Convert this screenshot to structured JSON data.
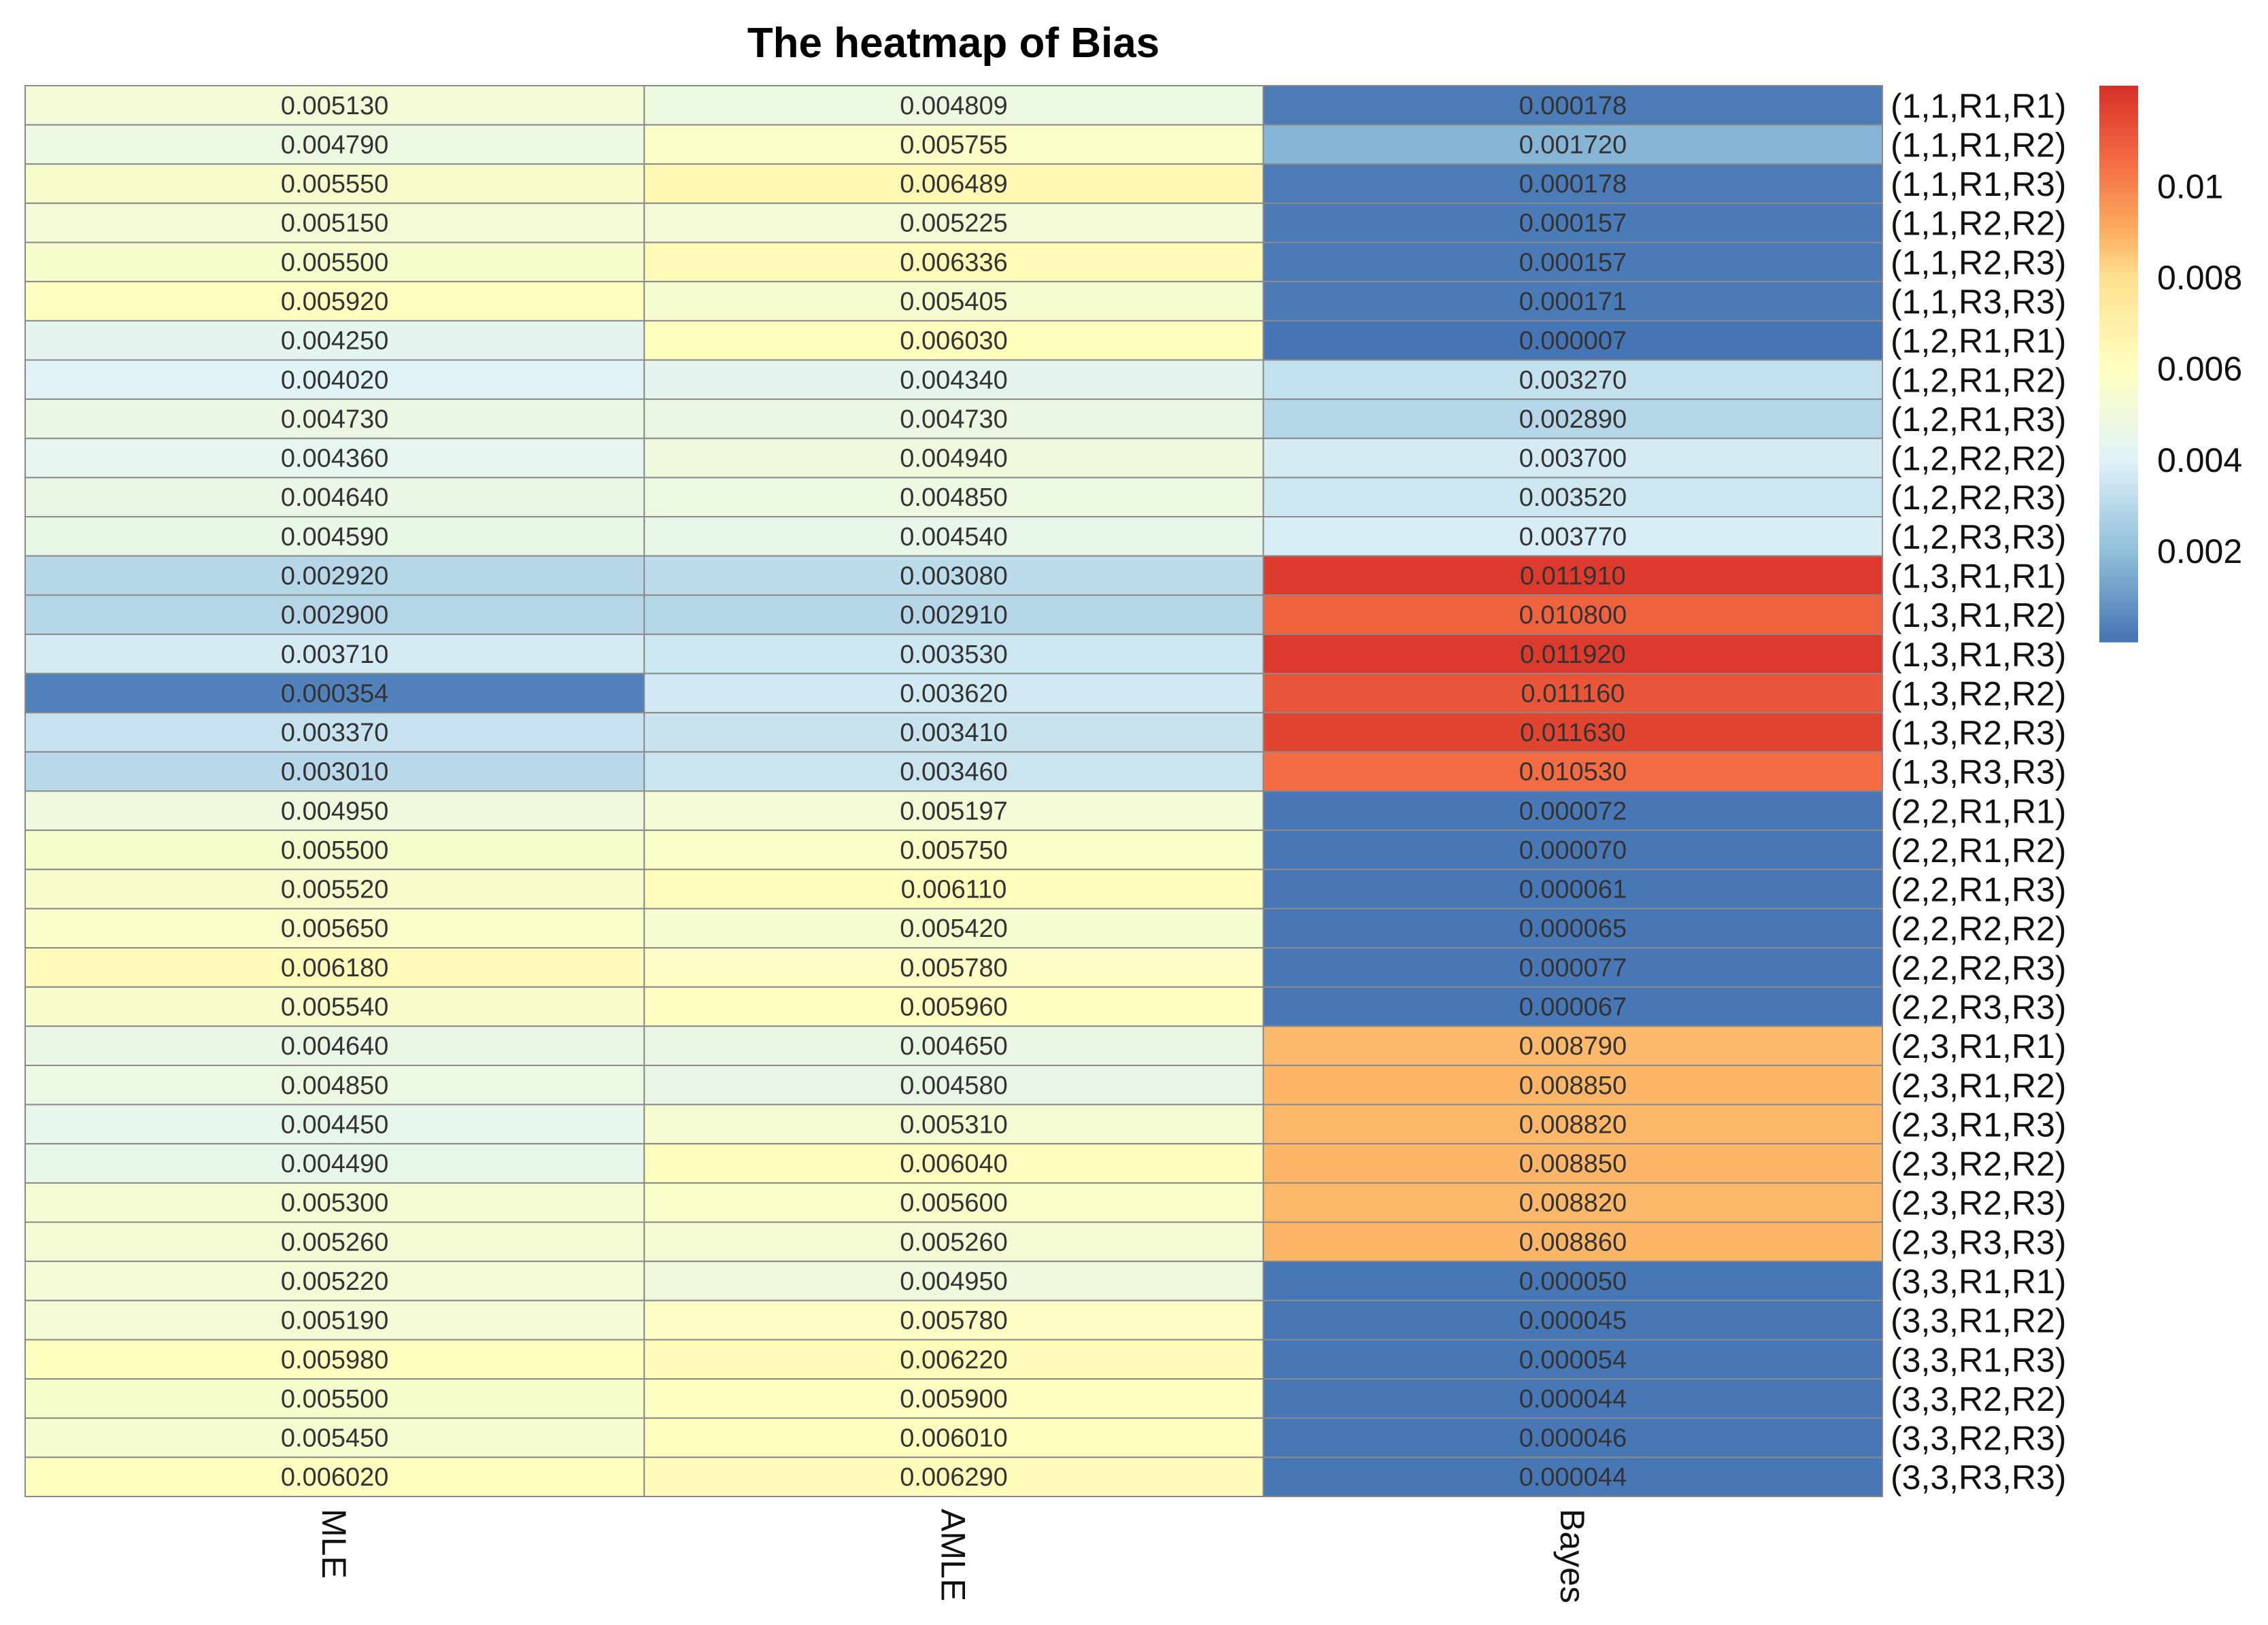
{
  "chart_data": {
    "type": "heatmap",
    "title": "The heatmap of Bias",
    "columns": [
      "MLE",
      "AMLE",
      "Bayes"
    ],
    "rows": [
      "(1,1,R1,R1)",
      "(1,1,R1,R2)",
      "(1,1,R1,R3)",
      "(1,1,R2,R2)",
      "(1,1,R2,R3)",
      "(1,1,R3,R3)",
      "(1,2,R1,R1)",
      "(1,2,R1,R2)",
      "(1,2,R1,R3)",
      "(1,2,R2,R2)",
      "(1,2,R2,R3)",
      "(1,2,R3,R3)",
      "(1,3,R1,R1)",
      "(1,3,R1,R2)",
      "(1,3,R1,R3)",
      "(1,3,R2,R2)",
      "(1,3,R2,R3)",
      "(1,3,R3,R3)",
      "(2,2,R1,R1)",
      "(2,2,R1,R2)",
      "(2,2,R1,R3)",
      "(2,2,R2,R2)",
      "(2,2,R2,R3)",
      "(2,2,R3,R3)",
      "(2,3,R1,R1)",
      "(2,3,R1,R2)",
      "(2,3,R1,R3)",
      "(2,3,R2,R2)",
      "(2,3,R2,R3)",
      "(2,3,R3,R3)",
      "(3,3,R1,R1)",
      "(3,3,R1,R2)",
      "(3,3,R1,R3)",
      "(3,3,R2,R2)",
      "(3,3,R2,R3)",
      "(3,3,R3,R3)"
    ],
    "cells": [
      [
        "0.005130",
        "0.004809",
        "0.000178"
      ],
      [
        "0.004790",
        "0.005755",
        "0.001720"
      ],
      [
        "0.005550",
        "0.006489",
        "0.000178"
      ],
      [
        "0.005150",
        "0.005225",
        "0.000157"
      ],
      [
        "0.005500",
        "0.006336",
        "0.000157"
      ],
      [
        "0.005920",
        "0.005405",
        "0.000171"
      ],
      [
        "0.004250",
        "0.006030",
        "0.000007"
      ],
      [
        "0.004020",
        "0.004340",
        "0.003270"
      ],
      [
        "0.004730",
        "0.004730",
        "0.002890"
      ],
      [
        "0.004360",
        "0.004940",
        "0.003700"
      ],
      [
        "0.004640",
        "0.004850",
        "0.003520"
      ],
      [
        "0.004590",
        "0.004540",
        "0.003770"
      ],
      [
        "0.002920",
        "0.003080",
        "0.011910"
      ],
      [
        "0.002900",
        "0.002910",
        "0.010800"
      ],
      [
        "0.003710",
        "0.003530",
        "0.011920"
      ],
      [
        "0.000354",
        "0.003620",
        "0.011160"
      ],
      [
        "0.003370",
        "0.003410",
        "0.011630"
      ],
      [
        "0.003010",
        "0.003460",
        "0.010530"
      ],
      [
        "0.004950",
        "0.005197",
        "0.000072"
      ],
      [
        "0.005500",
        "0.005750",
        "0.000070"
      ],
      [
        "0.005520",
        "0.006110",
        "0.000061"
      ],
      [
        "0.005650",
        "0.005420",
        "0.000065"
      ],
      [
        "0.006180",
        "0.005780",
        "0.000077"
      ],
      [
        "0.005540",
        "0.005960",
        "0.000067"
      ],
      [
        "0.004640",
        "0.004650",
        "0.008790"
      ],
      [
        "0.004850",
        "0.004580",
        "0.008850"
      ],
      [
        "0.004450",
        "0.005310",
        "0.008820"
      ],
      [
        "0.004490",
        "0.006040",
        "0.008850"
      ],
      [
        "0.005300",
        "0.005600",
        "0.008820"
      ],
      [
        "0.005260",
        "0.005260",
        "0.008860"
      ],
      [
        "0.005220",
        "0.004950",
        "0.000050"
      ],
      [
        "0.005190",
        "0.005780",
        "0.000045"
      ],
      [
        "0.005980",
        "0.006220",
        "0.000054"
      ],
      [
        "0.005500",
        "0.005900",
        "0.000044"
      ],
      [
        "0.005450",
        "0.006010",
        "0.000046"
      ],
      [
        "0.006020",
        "0.006290",
        "0.000044"
      ]
    ],
    "color_range": [
      0,
      0.0122
    ],
    "color_stops": [
      {
        "value": 0.0,
        "color": "#4575b4"
      },
      {
        "value": 0.002,
        "color": "#91bfdb"
      },
      {
        "value": 0.004,
        "color": "#e0f3f8"
      },
      {
        "value": 0.006,
        "color": "#ffffbf"
      },
      {
        "value": 0.008,
        "color": "#fee090"
      },
      {
        "value": 0.009,
        "color": "#fdae61"
      },
      {
        "value": 0.0105,
        "color": "#f46d43"
      },
      {
        "value": 0.0122,
        "color": "#d73027"
      }
    ],
    "legend": {
      "ticks": [
        0.01,
        0.008,
        0.006,
        0.004,
        0.002
      ],
      "tick_labels": [
        "0.01",
        "0.008",
        "0.006",
        "0.004",
        "0.002"
      ],
      "placement": "right"
    },
    "colors": {
      "cell_border": "#8a8a8a",
      "background": "#ffffff"
    }
  }
}
